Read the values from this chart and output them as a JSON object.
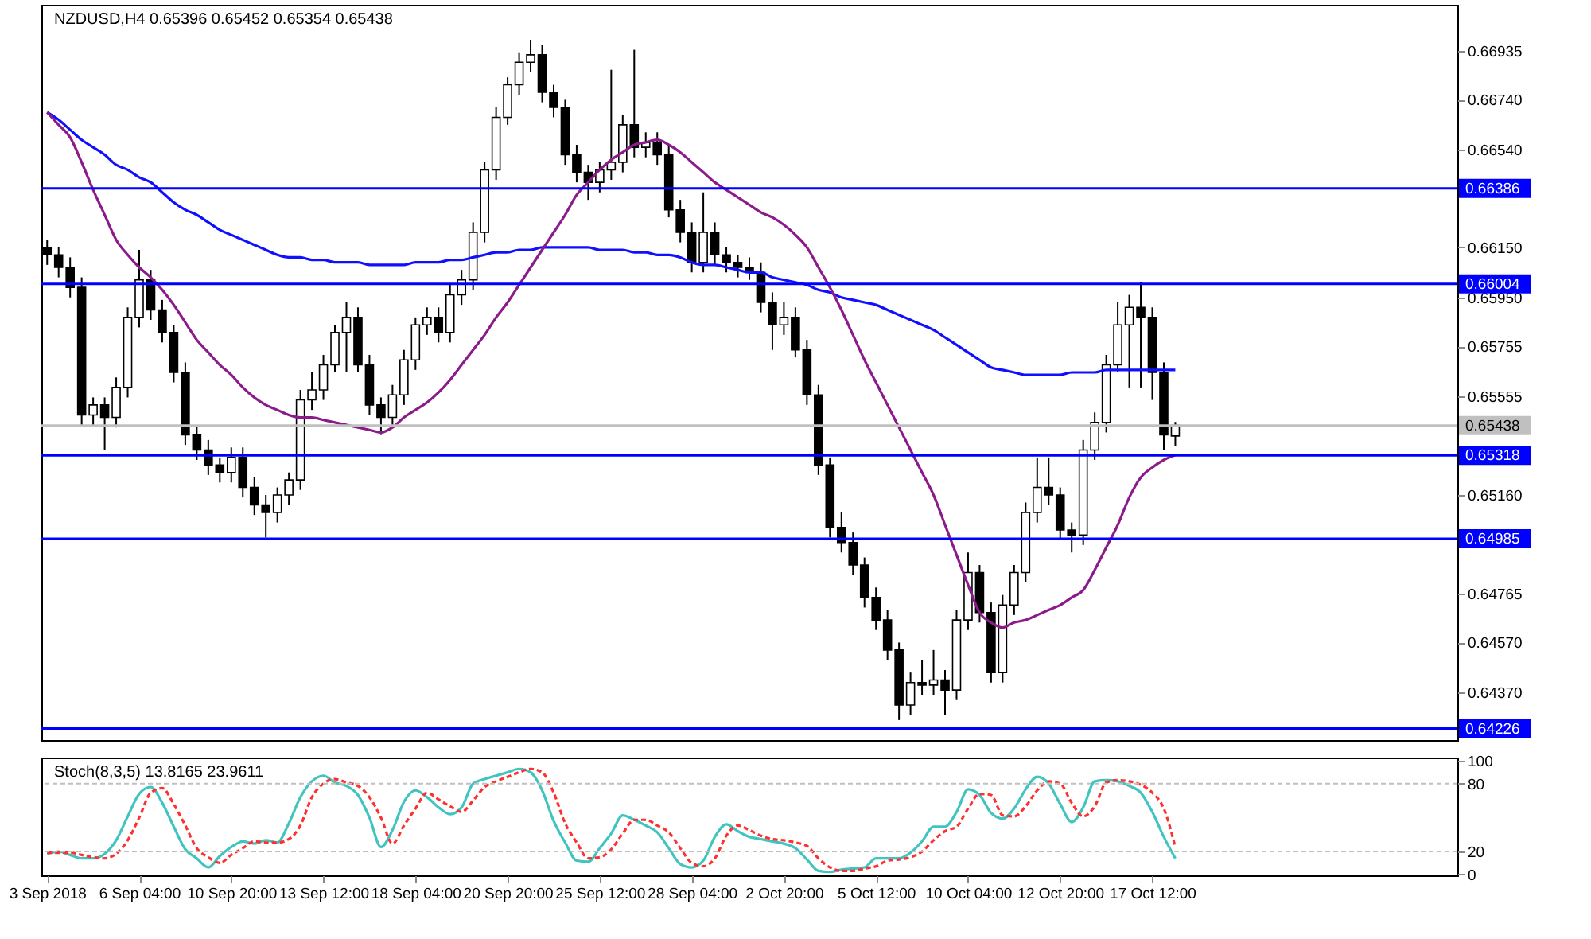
{
  "chart_data": [
    {
      "type": "candlestick",
      "title": "NZDUSD,H4  0.65396 0.65452 0.65354 0.65438",
      "categories": [
        null,
        null,
        null,
        null,
        null,
        null,
        null,
        null,
        null,
        null,
        null,
        null,
        null,
        null,
        null,
        null,
        null,
        null,
        null,
        null,
        null,
        null,
        null,
        null,
        null,
        null,
        null,
        null,
        null,
        null,
        null,
        null,
        null,
        null,
        null,
        null,
        null,
        null,
        null,
        null,
        null,
        null,
        null,
        null,
        null,
        null,
        null,
        null,
        null,
        null,
        null,
        null,
        null,
        null,
        null,
        null,
        null,
        null,
        null,
        null,
        null,
        null,
        null,
        null,
        null,
        null,
        null,
        null,
        null,
        null,
        null,
        null,
        null,
        null,
        null,
        null,
        null,
        null,
        null,
        null,
        null,
        null,
        null,
        null,
        null,
        null,
        null,
        null,
        null,
        null,
        null,
        null,
        null,
        null,
        null,
        null,
        null,
        null,
        null,
        null,
        null,
        null,
        null,
        null,
        null,
        null,
        null,
        null,
        null,
        null,
        null,
        null,
        null,
        null,
        null,
        null,
        null,
        null,
        null,
        null,
        null,
        null,
        null
      ],
      "ohlc": [
        [
          0.6615,
          0.6618,
          0.6608,
          0.6612
        ],
        [
          0.6612,
          0.6615,
          0.6603,
          0.6607
        ],
        [
          0.6607,
          0.6611,
          0.6595,
          0.6599
        ],
        [
          0.6599,
          0.6603,
          0.6544,
          0.6548
        ],
        [
          0.6548,
          0.6555,
          0.6544,
          0.6552
        ],
        [
          0.6552,
          0.6555,
          0.6534,
          0.6547
        ],
        [
          0.6547,
          0.6563,
          0.6543,
          0.6559
        ],
        [
          0.6559,
          0.6591,
          0.6555,
          0.6587
        ],
        [
          0.6587,
          0.6614,
          0.6583,
          0.6602
        ],
        [
          0.6602,
          0.6606,
          0.6586,
          0.659
        ],
        [
          0.659,
          0.6594,
          0.6577,
          0.6581
        ],
        [
          0.6581,
          0.6584,
          0.6561,
          0.6565
        ],
        [
          0.6565,
          0.6569,
          0.6536,
          0.654
        ],
        [
          0.654,
          0.6544,
          0.653,
          0.6534
        ],
        [
          0.6534,
          0.6538,
          0.6524,
          0.6528
        ],
        [
          0.6528,
          0.6531,
          0.6521,
          0.6525
        ],
        [
          0.6525,
          0.6535,
          0.6521,
          0.6531
        ],
        [
          0.6531,
          0.6535,
          0.6515,
          0.6519
        ],
        [
          0.6519,
          0.6523,
          0.6508,
          0.6512
        ],
        [
          0.6512,
          0.6516,
          0.6499,
          0.6509
        ],
        [
          0.6509,
          0.6519,
          0.6505,
          0.6516
        ],
        [
          0.6516,
          0.6525,
          0.6512,
          0.6522
        ],
        [
          0.6522,
          0.6558,
          0.6518,
          0.6554
        ],
        [
          0.6554,
          0.6565,
          0.655,
          0.6558
        ],
        [
          0.6558,
          0.6572,
          0.6554,
          0.6568
        ],
        [
          0.6568,
          0.6584,
          0.6565,
          0.6581
        ],
        [
          0.6581,
          0.6593,
          0.6565,
          0.6587
        ],
        [
          0.6587,
          0.6591,
          0.6565,
          0.6568
        ],
        [
          0.6568,
          0.6572,
          0.6548,
          0.6552
        ],
        [
          0.6552,
          0.6555,
          0.654,
          0.6547
        ],
        [
          0.6547,
          0.656,
          0.6543,
          0.6556
        ],
        [
          0.6556,
          0.6574,
          0.6552,
          0.657
        ],
        [
          0.657,
          0.6587,
          0.6566,
          0.6584
        ],
        [
          0.6584,
          0.6591,
          0.658,
          0.6587
        ],
        [
          0.6587,
          0.6591,
          0.6577,
          0.6581
        ],
        [
          0.6581,
          0.66,
          0.6577,
          0.6596
        ],
        [
          0.6596,
          0.6606,
          0.6592,
          0.6602
        ],
        [
          0.6602,
          0.6625,
          0.6598,
          0.6621
        ],
        [
          0.6621,
          0.6649,
          0.6617,
          0.6646
        ],
        [
          0.6646,
          0.6671,
          0.6642,
          0.6667
        ],
        [
          0.6667,
          0.6683,
          0.6664,
          0.668
        ],
        [
          0.668,
          0.6693,
          0.6676,
          0.6689
        ],
        [
          0.6689,
          0.6698,
          0.6685,
          0.6692
        ],
        [
          0.6692,
          0.6696,
          0.6673,
          0.6677
        ],
        [
          0.6677,
          0.668,
          0.6667,
          0.6671
        ],
        [
          0.6671,
          0.6674,
          0.6648,
          0.6652
        ],
        [
          0.6652,
          0.6656,
          0.6641,
          0.6645
        ],
        [
          0.6645,
          0.6648,
          0.6634,
          0.6641
        ],
        [
          0.6641,
          0.6649,
          0.6637,
          0.6646
        ],
        [
          0.6646,
          0.6686,
          0.6642,
          0.6649
        ],
        [
          0.6649,
          0.6668,
          0.6645,
          0.6664
        ],
        [
          0.6664,
          0.6694,
          0.6651,
          0.6655
        ],
        [
          0.6655,
          0.6661,
          0.6651,
          0.6657
        ],
        [
          0.6657,
          0.6661,
          0.6648,
          0.6652
        ],
        [
          0.6652,
          0.6656,
          0.6627,
          0.663
        ],
        [
          0.663,
          0.6634,
          0.6617,
          0.6621
        ],
        [
          0.6621,
          0.6625,
          0.6605,
          0.6609
        ],
        [
          0.6609,
          0.6637,
          0.6605,
          0.6621
        ],
        [
          0.6621,
          0.6625,
          0.6608,
          0.6612
        ],
        [
          0.6612,
          0.6615,
          0.6605,
          0.6609
        ],
        [
          0.6609,
          0.6612,
          0.6603,
          0.6607
        ],
        [
          0.6607,
          0.6611,
          0.6602,
          0.6605
        ],
        [
          0.6605,
          0.6609,
          0.6589,
          0.6593
        ],
        [
          0.6593,
          0.6597,
          0.6574,
          0.6584
        ],
        [
          0.6584,
          0.6593,
          0.658,
          0.6587
        ],
        [
          0.6587,
          0.6591,
          0.6571,
          0.6574
        ],
        [
          0.6574,
          0.6578,
          0.6552,
          0.6556
        ],
        [
          0.6556,
          0.656,
          0.6524,
          0.6528
        ],
        [
          0.6528,
          0.6531,
          0.6499,
          0.6503
        ],
        [
          0.6503,
          0.6509,
          0.6493,
          0.6497
        ],
        [
          0.6497,
          0.6501,
          0.6484,
          0.6488
        ],
        [
          0.6488,
          0.6491,
          0.6471,
          0.6475
        ],
        [
          0.6475,
          0.6479,
          0.6462,
          0.6466
        ],
        [
          0.6466,
          0.647,
          0.645,
          0.6454
        ],
        [
          0.6454,
          0.6457,
          0.6426,
          0.6432
        ],
        [
          0.6432,
          0.6445,
          0.6428,
          0.6441
        ],
        [
          0.6441,
          0.645,
          0.6436,
          0.644
        ],
        [
          0.644,
          0.6454,
          0.6436,
          0.6442
        ],
        [
          0.6442,
          0.6446,
          0.6428,
          0.6438
        ],
        [
          0.6438,
          0.647,
          0.6434,
          0.6466
        ],
        [
          0.6466,
          0.6493,
          0.6462,
          0.6485
        ],
        [
          0.6485,
          0.6488,
          0.6465,
          0.6469
        ],
        [
          0.6469,
          0.6473,
          0.6441,
          0.6445
        ],
        [
          0.6445,
          0.6476,
          0.6441,
          0.6472
        ],
        [
          0.6472,
          0.6488,
          0.6468,
          0.6485
        ],
        [
          0.6485,
          0.6513,
          0.6481,
          0.6509
        ],
        [
          0.6509,
          0.6531,
          0.6505,
          0.6519
        ],
        [
          0.6519,
          0.6531,
          0.6512,
          0.6516
        ],
        [
          0.6516,
          0.6519,
          0.6498,
          0.6502
        ],
        [
          0.6502,
          0.6505,
          0.6493,
          0.65
        ],
        [
          0.65,
          0.6538,
          0.6496,
          0.6534
        ],
        [
          0.6534,
          0.6549,
          0.653,
          0.6545
        ],
        [
          0.6545,
          0.6572,
          0.6541,
          0.6568
        ],
        [
          0.6568,
          0.6593,
          0.6565,
          0.6584
        ],
        [
          0.6584,
          0.6596,
          0.6559,
          0.6591
        ],
        [
          0.6591,
          0.6601,
          0.6559,
          0.6587
        ],
        [
          0.6587,
          0.6591,
          0.6554,
          0.6565
        ],
        [
          0.6565,
          0.6569,
          0.6534,
          0.654
        ],
        [
          0.65396,
          0.65452,
          0.65354,
          0.65438
        ],
        null,
        null,
        null,
        null,
        null,
        null,
        null,
        null,
        null,
        null,
        null,
        null,
        null,
        null,
        null,
        null,
        null,
        null,
        null,
        null,
        null,
        null,
        null,
        null
      ],
      "series": [
        {
          "type": "line",
          "color": "#1010ff",
          "values": [
            0.6669,
            0.6666,
            0.6662,
            0.6658,
            0.6655,
            0.6652,
            0.6648,
            0.6646,
            0.6643,
            0.6641,
            0.6637,
            0.6633,
            0.663,
            0.6628,
            0.6625,
            0.6622,
            0.662,
            0.6618,
            0.6616,
            0.6614,
            0.6612,
            0.6611,
            0.6611,
            0.661,
            0.661,
            0.6609,
            0.6609,
            0.6609,
            0.6608,
            0.6608,
            0.6608,
            0.6608,
            0.6609,
            0.6609,
            0.6609,
            0.661,
            0.661,
            0.6611,
            0.6612,
            0.6613,
            0.6613,
            0.6614,
            0.6614,
            0.6615,
            0.6615,
            0.6615,
            0.6615,
            0.6615,
            0.6614,
            0.6614,
            0.6614,
            0.6613,
            0.6613,
            0.6612,
            0.6612,
            0.6611,
            0.6609,
            0.6608,
            0.6608,
            0.6607,
            0.6606,
            0.6605,
            0.6605,
            0.6603,
            0.6602,
            0.6601,
            0.66,
            0.6598,
            0.6597,
            0.6595,
            0.6594,
            0.6593,
            0.6592,
            0.659,
            0.6588,
            0.6586,
            0.6584,
            0.6582,
            0.6579,
            0.6576,
            0.6573,
            0.657,
            0.6567,
            0.6566,
            0.6565,
            0.6564,
            0.6564,
            0.6564,
            0.6564,
            0.6565,
            0.6565,
            0.6565,
            0.6566,
            0.6566,
            0.6566,
            0.6566,
            0.6566,
            0.6566,
            0.6566,
            null,
            null,
            null,
            null,
            null,
            null,
            null,
            null,
            null,
            null,
            null,
            null,
            null,
            null,
            null,
            null,
            null,
            null,
            null,
            null,
            null,
            null,
            null,
            null
          ]
        },
        {
          "type": "line",
          "color": "#8b1a8b",
          "values": [
            0.6669,
            0.6664,
            0.6659,
            0.6649,
            0.6638,
            0.6628,
            0.6618,
            0.6612,
            0.6607,
            0.6603,
            0.6598,
            0.6592,
            0.6585,
            0.6578,
            0.6573,
            0.6568,
            0.6564,
            0.6559,
            0.6555,
            0.6552,
            0.655,
            0.6548,
            0.6547,
            0.6547,
            0.6546,
            0.6545,
            0.6544,
            0.6543,
            0.6542,
            0.6541,
            0.6543,
            0.6547,
            0.655,
            0.6553,
            0.6557,
            0.6562,
            0.6568,
            0.6574,
            0.658,
            0.6587,
            0.6593,
            0.66,
            0.6607,
            0.6614,
            0.6621,
            0.6628,
            0.6636,
            0.6641,
            0.6646,
            0.665,
            0.6653,
            0.6656,
            0.6657,
            0.6658,
            0.6656,
            0.6653,
            0.6649,
            0.6645,
            0.6641,
            0.6638,
            0.6635,
            0.6632,
            0.6629,
            0.6627,
            0.6624,
            0.662,
            0.6615,
            0.6607,
            0.6599,
            0.659,
            0.658,
            0.657,
            0.6561,
            0.6552,
            0.6543,
            0.6534,
            0.6525,
            0.6516,
            0.6504,
            0.6492,
            0.648,
            0.6469,
            0.6465,
            0.6463,
            0.6465,
            0.6466,
            0.6468,
            0.647,
            0.6472,
            0.6475,
            0.6478,
            0.6486,
            0.6495,
            0.6504,
            0.6515,
            0.6523,
            0.6527,
            0.653,
            0.6532,
            null,
            null,
            null,
            null,
            null,
            null,
            null,
            null,
            null,
            null,
            null,
            null,
            null,
            null,
            null,
            null,
            null,
            null,
            null,
            null,
            null,
            null,
            null,
            null
          ]
        }
      ],
      "ylim": [
        0.6418,
        0.6712
      ],
      "yticks": [
        0.66935,
        {
          "value": 0.6674,
          "label": "0.66740"
        },
        {
          "value": 0.6654,
          "label": "0.66540"
        },
        {
          "value": 0.6615,
          "label": "0.66150"
        },
        {
          "value": 0.6595,
          "label": "0.65950"
        },
        0.65755,
        0.65555,
        {
          "value": 0.6516,
          "label": "0.65160"
        },
        0.64765,
        {
          "value": 0.6457,
          "label": "0.64570"
        },
        {
          "value": 0.6437,
          "label": "0.64370"
        }
      ],
      "ref_lines": [
        {
          "axis": "y",
          "value": 0.66386,
          "label": "0.66386",
          "color": "#0000ff"
        },
        {
          "axis": "y",
          "value": 0.66004,
          "label": "0.66004",
          "color": "#0000ff"
        },
        {
          "axis": "y",
          "value": 0.65438,
          "label": "0.65438",
          "color": "#c0c0c0"
        },
        {
          "axis": "y",
          "value": 0.65318,
          "label": "0.65318",
          "color": "#0000ff"
        },
        {
          "axis": "y",
          "value": 0.64985,
          "label": "0.64985",
          "color": "#0000ff"
        },
        {
          "axis": "y",
          "value": 0.64226,
          "label": "0.64226",
          "color": "#0000ff"
        }
      ],
      "tick_labels": "y"
    },
    {
      "type": "line",
      "title": "Stoch(8,3,5) 13.8165 23.9611",
      "categories": [
        "3 Sep 2018",
        null,
        null,
        null,
        null,
        null,
        null,
        null,
        "6 Sep 04:00",
        null,
        null,
        null,
        null,
        null,
        null,
        null,
        "10 Sep 20:00",
        null,
        null,
        null,
        null,
        null,
        null,
        null,
        "13 Sep 12:00",
        null,
        null,
        null,
        null,
        null,
        null,
        null,
        "18 Sep 04:00",
        null,
        null,
        null,
        null,
        null,
        null,
        null,
        "20 Sep 20:00",
        null,
        null,
        null,
        null,
        null,
        null,
        null,
        "25 Sep 12:00",
        null,
        null,
        null,
        null,
        null,
        null,
        null,
        "28 Sep 04:00",
        null,
        null,
        null,
        null,
        null,
        null,
        null,
        "2 Oct 20:00",
        null,
        null,
        null,
        null,
        null,
        null,
        null,
        "5 Oct 12:00",
        null,
        null,
        null,
        null,
        null,
        null,
        null,
        "10 Oct 04:00",
        null,
        null,
        null,
        null,
        null,
        null,
        null,
        "12 Oct 20:00",
        null,
        null,
        null,
        null,
        null,
        null,
        null,
        "17 Oct 12:00",
        null,
        null,
        null,
        null,
        null,
        null,
        null,
        null,
        null,
        null,
        null,
        null,
        null,
        null,
        null,
        null,
        null,
        null,
        null,
        null,
        null,
        null,
        null,
        null,
        null,
        null
      ],
      "series": [
        {
          "color": "#40c4c0",
          "values": [
            18,
            20,
            17,
            14,
            14,
            18,
            30,
            51,
            71,
            77,
            63,
            42,
            22,
            14,
            6,
            16,
            24,
            29,
            27,
            30,
            28,
            45,
            68,
            82,
            87,
            81,
            78,
            70,
            50,
            24,
            39,
            64,
            74,
            68,
            59,
            53,
            59,
            80,
            84,
            87,
            90,
            93,
            90,
            74,
            47,
            28,
            12,
            11,
            23,
            36,
            52,
            48,
            43,
            37,
            23,
            9,
            6,
            12,
            33,
            44,
            38,
            33,
            31,
            29,
            27,
            23,
            13,
            3,
            2,
            4,
            5,
            6,
            14,
            14,
            14,
            19,
            29,
            42,
            42,
            55,
            75,
            70,
            54,
            49,
            58,
            75,
            86,
            80,
            62,
            46,
            59,
            82,
            83,
            82,
            78,
            72,
            55,
            33,
            14,
            null,
            null,
            null,
            null,
            null,
            null,
            null,
            null,
            null,
            null,
            null,
            null,
            null,
            null,
            null,
            null,
            null,
            null,
            null,
            null,
            null,
            null,
            null,
            null
          ]
        },
        {
          "color": "#ff3030",
          "line_style": "dashed",
          "values": [
            19,
            19,
            19,
            17,
            15,
            14,
            18,
            30,
            50,
            72,
            76,
            62,
            43,
            23,
            15,
            10,
            17,
            23,
            29,
            28,
            28,
            31,
            43,
            68,
            80,
            84,
            81,
            78,
            68,
            50,
            27,
            43,
            58,
            72,
            66,
            60,
            55,
            65,
            77,
            82,
            86,
            90,
            93,
            90,
            72,
            45,
            28,
            14,
            15,
            22,
            36,
            48,
            48,
            43,
            37,
            23,
            10,
            7,
            14,
            34,
            43,
            39,
            34,
            31,
            30,
            28,
            25,
            14,
            6,
            3,
            3,
            5,
            7,
            12,
            13,
            15,
            20,
            30,
            38,
            42,
            58,
            71,
            70,
            52,
            51,
            60,
            74,
            82,
            80,
            63,
            51,
            60,
            81,
            83,
            82,
            79,
            72,
            58,
            24,
            null,
            null,
            null,
            null,
            null,
            null,
            null,
            null,
            null,
            null,
            null,
            null,
            null,
            null,
            null,
            null,
            null,
            null,
            null,
            null,
            null,
            null,
            null,
            null
          ]
        }
      ],
      "ylim": [
        -1,
        103
      ],
      "yticks": [
        0,
        20,
        80,
        100
      ],
      "ref_lines": [
        {
          "axis": "y",
          "value": 80,
          "color": "#c0c0c0",
          "line_style": "dashed"
        },
        {
          "axis": "y",
          "value": 20,
          "color": "#c0c0c0",
          "line_style": "dashed"
        }
      ]
    }
  ]
}
